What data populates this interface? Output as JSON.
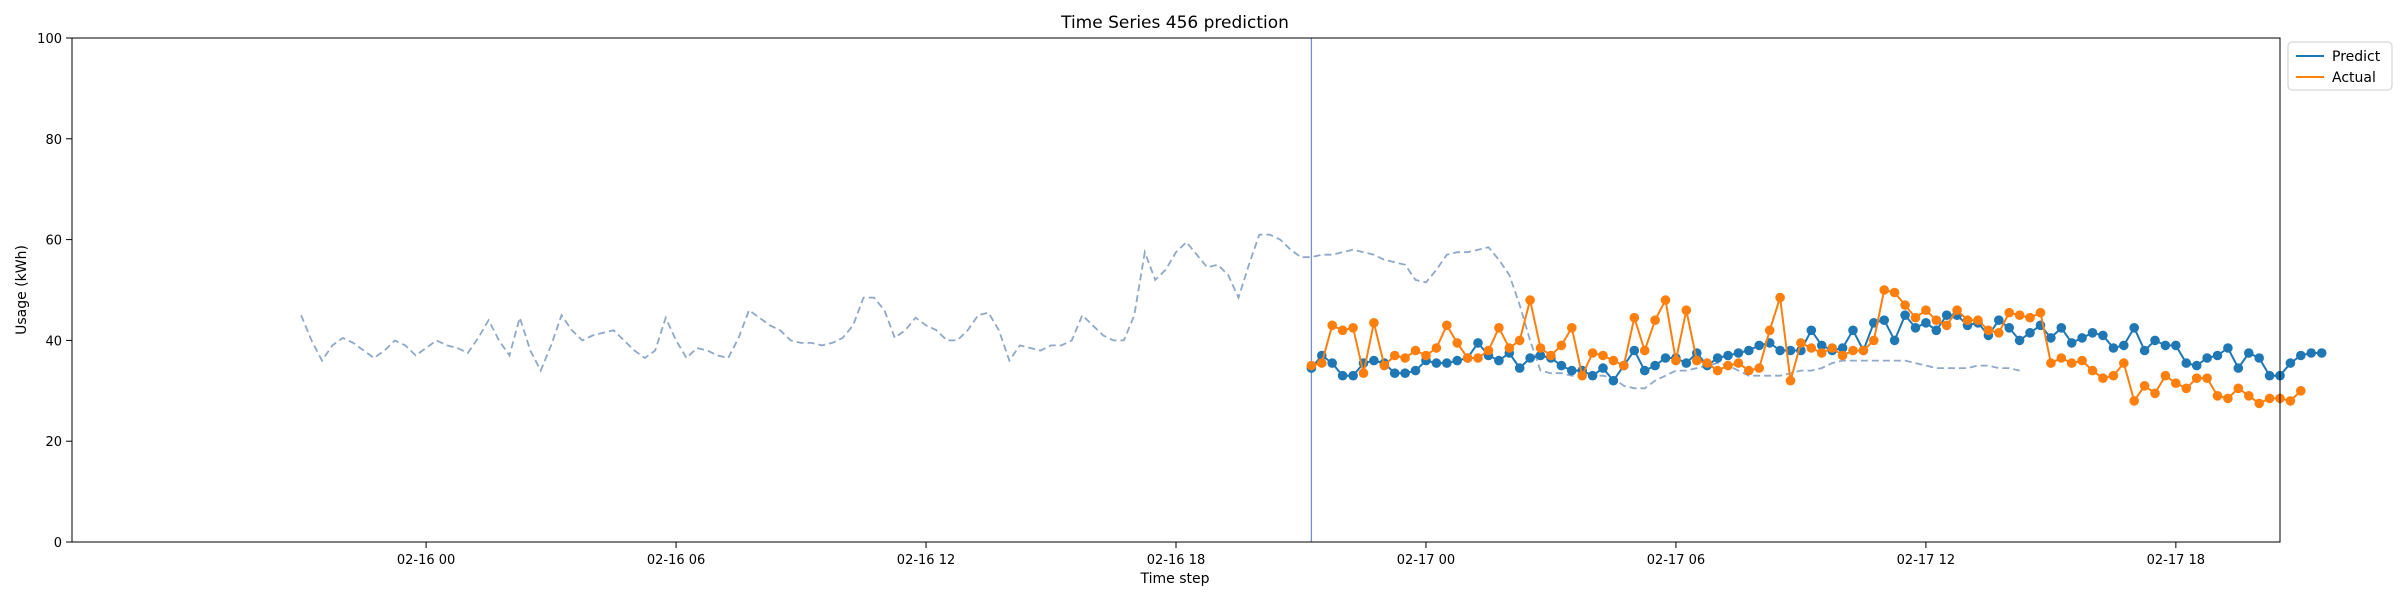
{
  "chart_data": {
    "type": "line",
    "title": "Time Series 456 prediction",
    "xlabel": "Time step",
    "ylabel": "Usage (kWh)",
    "ylim": [
      0,
      100
    ],
    "yticks": [
      0,
      20,
      40,
      60,
      80,
      100
    ],
    "x_unit": "hour",
    "xlim": [
      -8.5,
      44.5
    ],
    "xticks": [
      {
        "x": 0,
        "label": "02-16 00"
      },
      {
        "x": 6,
        "label": "02-16 06"
      },
      {
        "x": 12,
        "label": "02-16 12"
      },
      {
        "x": 18,
        "label": "02-16 18"
      },
      {
        "x": 24,
        "label": "02-17 00"
      },
      {
        "x": 30,
        "label": "02-17 06"
      },
      {
        "x": 36,
        "label": "02-17 12"
      },
      {
        "x": 42,
        "label": "02-17 18"
      }
    ],
    "split_x": 21.25,
    "history": {
      "x_start": -3.0,
      "x_step": 0.25,
      "values": [
        45,
        40,
        36,
        39,
        40.5,
        39.5,
        38,
        36.5,
        38,
        40,
        39,
        37,
        38.5,
        40,
        39,
        38.5,
        37.5,
        40.5,
        44,
        40,
        37,
        44.5,
        38,
        34,
        39,
        45,
        42,
        40,
        41,
        41.5,
        42,
        40,
        38,
        36.5,
        38,
        44.5,
        40,
        36.5,
        38.5,
        38,
        37,
        36.5,
        40.5,
        46,
        44.5,
        43,
        42,
        40,
        39.5,
        39.5,
        39,
        39.5,
        40.5,
        43,
        48.5,
        48.5,
        46,
        40.5,
        42,
        44.5,
        43,
        42,
        40,
        40,
        42,
        45,
        45.5,
        42,
        36,
        39,
        38.5,
        38,
        39,
        39,
        40,
        45,
        43,
        41,
        40,
        40,
        45,
        57.5,
        52,
        54,
        57.5,
        59.5,
        57,
        54.5,
        55,
        53,
        48.5,
        55,
        61,
        61,
        60,
        58,
        56.5,
        56.5,
        57,
        57,
        57.5,
        58,
        57.5,
        57,
        56,
        55.5,
        55,
        52,
        51.5,
        54,
        57,
        57.5,
        57.5,
        58,
        58.5,
        56,
        53,
        47,
        40,
        34,
        33.5,
        33.5,
        33,
        33,
        33,
        33,
        32.5,
        31,
        30.5,
        30.5,
        32,
        33,
        34,
        34,
        34.5,
        35,
        35.5,
        35,
        34,
        33,
        33,
        33,
        33,
        33.5,
        34,
        34,
        34.5,
        35.5,
        36,
        36,
        36,
        36,
        36,
        36,
        36,
        35.5,
        35,
        34.5,
        34.5,
        34.5,
        34.5,
        35,
        35,
        34.5,
        34.5,
        34
      ]
    },
    "forecast": {
      "x_start": 21.25,
      "x_step": 0.25,
      "series": [
        {
          "name": "Predict",
          "color": "#1f77b4",
          "values": [
            34.5,
            37,
            35.5,
            33,
            33,
            35.5,
            36,
            35.5,
            33.5,
            33.5,
            34,
            36,
            35.5,
            35.5,
            36,
            36.5,
            39.5,
            37,
            36,
            37.5,
            34.5,
            36.5,
            37,
            36.5,
            35,
            34,
            34,
            33,
            34.5,
            32,
            35,
            38,
            34,
            35,
            36.5,
            36.5,
            35.5,
            37.5,
            35,
            36.5,
            37,
            37.5,
            38,
            39,
            39.5,
            38,
            38,
            38,
            42,
            39,
            38,
            38.5,
            42,
            38,
            43.5,
            44,
            40,
            45,
            42.5,
            43.5,
            42,
            45,
            45,
            43,
            43.5,
            41,
            44,
            42.5,
            40,
            41.5,
            43,
            40.5,
            42.5,
            39.5,
            40.5,
            41.5,
            41,
            38.5,
            39,
            42.5,
            38,
            40,
            39,
            39,
            35.5,
            35,
            36.5,
            37,
            38.5,
            34.5,
            37.5,
            36.5,
            33,
            33,
            35.5,
            37,
            37.5,
            37.5
          ]
        },
        {
          "name": "Actual",
          "color": "#ff7f0e",
          "values": [
            35,
            35.5,
            43,
            42,
            42.5,
            33.5,
            43.5,
            35,
            37,
            36.5,
            38,
            37,
            38.5,
            43,
            39.5,
            36.5,
            36.5,
            38,
            42.5,
            38.5,
            40,
            48,
            38.5,
            37,
            39,
            42.5,
            33,
            37.5,
            37,
            36,
            35,
            44.5,
            38,
            44,
            48,
            36,
            46,
            36,
            35.5,
            34,
            35,
            35.5,
            34,
            34.5,
            42,
            48.5,
            32,
            39.5,
            38.5,
            37.5,
            38.5,
            37,
            38,
            38,
            40,
            50,
            49.5,
            47,
            44.5,
            46,
            44,
            43,
            46,
            44,
            44,
            42,
            41.5,
            45.5,
            45,
            44.5,
            45.5,
            35.5,
            36.5,
            35.5,
            36,
            34,
            32.5,
            33,
            35.5,
            28,
            31,
            29.5,
            33,
            31.5,
            30.5,
            32.5,
            32.5,
            29,
            28.5,
            30.5,
            29,
            27.5,
            28.5,
            28.5,
            28,
            30
          ]
        }
      ]
    },
    "legend": {
      "position": "upper-right-outside",
      "items": [
        {
          "label": "Predict",
          "color": "#1f77b4"
        },
        {
          "label": "Actual",
          "color": "#ff7f0e"
        }
      ]
    }
  }
}
